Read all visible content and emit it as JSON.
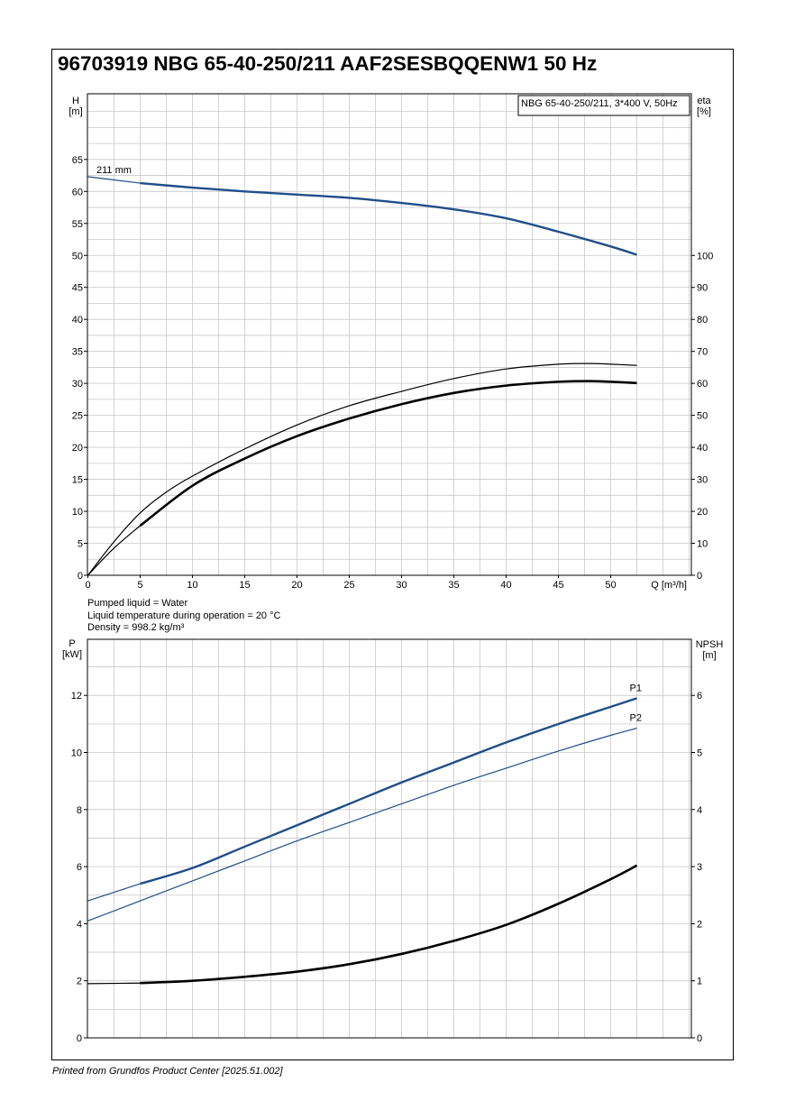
{
  "title": "96703919 NBG 65-40-250/211 AAF2SESBQQENW1 50 Hz",
  "footer": "Printed from Grundfos Product Center [2025.51.002]",
  "liquid_info": [
    "Pumped liquid = Water",
    "Liquid temperature during operation = 20 °C",
    "Density = 998.2 kg/m³"
  ],
  "colors": {
    "blue": "#1f4e89",
    "black": "#000000",
    "grid": "#c8c8c8"
  },
  "chart_data": [
    {
      "type": "line",
      "legend_box": "NBG 65-40-250/211, 3*400 V, 50Hz",
      "impeller_label": "211 mm",
      "x_axis": {
        "label": "Q [m³/h]",
        "range": [
          0,
          58
        ],
        "ticks": [
          0,
          5,
          10,
          15,
          20,
          25,
          30,
          35,
          40,
          45,
          50
        ]
      },
      "y_left": {
        "label_top": "H",
        "label_unit": "[m]",
        "range": [
          0,
          75
        ],
        "ticks": [
          0,
          5,
          10,
          15,
          20,
          25,
          30,
          35,
          40,
          45,
          50,
          55,
          60,
          65
        ]
      },
      "y_right": {
        "label_top": "eta",
        "label_unit": "[%]",
        "range": [
          0,
          150
        ],
        "ticks": [
          0,
          10,
          20,
          30,
          40,
          50,
          60,
          70,
          80,
          90,
          100
        ]
      },
      "grid": true,
      "series": [
        {
          "axis": "left",
          "style": "blue-thick",
          "x": [
            5,
            10,
            15,
            20,
            25,
            30,
            35,
            40,
            45,
            50,
            52.5
          ],
          "y": [
            61.3,
            60.6,
            60.0,
            59.5,
            59.0,
            58.2,
            57.2,
            55.8,
            53.7,
            51.4,
            50.1
          ]
        },
        {
          "axis": "left",
          "style": "blue-thin",
          "x": [
            0,
            5
          ],
          "y": [
            62.3,
            61.3
          ]
        },
        {
          "axis": "right",
          "style": "black-thin",
          "x": [
            0,
            2.5,
            5,
            7.5,
            10,
            15,
            20,
            25,
            30,
            35,
            40,
            45,
            48,
            50,
            52.5
          ],
          "y": [
            0,
            10.5,
            19.5,
            26.0,
            31.0,
            39.5,
            47.0,
            53.0,
            57.5,
            61.5,
            64.5,
            66.0,
            66.2,
            66.0,
            65.6
          ]
        },
        {
          "axis": "right",
          "style": "black-thick",
          "x": [
            5,
            10,
            15,
            20,
            25,
            30,
            35,
            40,
            45,
            48,
            50,
            52.5
          ],
          "y": [
            15.5,
            28.0,
            36.5,
            43.5,
            49.0,
            53.5,
            57.0,
            59.3,
            60.5,
            60.7,
            60.5,
            60.1
          ]
        },
        {
          "axis": "right",
          "style": "black-thin",
          "x": [
            0,
            2.5,
            5
          ],
          "y": [
            0,
            8.5,
            15.5
          ]
        }
      ]
    },
    {
      "type": "line",
      "x_axis": {
        "range": [
          0,
          58
        ]
      },
      "y_left": {
        "label_top": "P",
        "label_unit": "[kW]",
        "range": [
          0,
          13.5
        ],
        "ticks": [
          0,
          2,
          4,
          6,
          8,
          10,
          12
        ]
      },
      "y_right": {
        "label_top": "NPSH",
        "label_unit": "[m]",
        "range": [
          0,
          6.75
        ],
        "ticks": [
          0,
          1,
          2,
          3,
          4,
          5,
          6
        ]
      },
      "grid": true,
      "series": [
        {
          "name": "P1",
          "axis": "left",
          "style": "blue-thick",
          "x": [
            5,
            10,
            15,
            20,
            25,
            30,
            35,
            40,
            45,
            50,
            52.5
          ],
          "y": [
            5.4,
            5.95,
            6.7,
            7.45,
            8.2,
            8.95,
            9.65,
            10.35,
            11.0,
            11.6,
            11.9
          ]
        },
        {
          "name": "",
          "axis": "left",
          "style": "blue-thin",
          "x": [
            0,
            5
          ],
          "y": [
            4.8,
            5.4
          ]
        },
        {
          "name": "P2",
          "axis": "left",
          "style": "blue-thin",
          "x": [
            0,
            5,
            10,
            15,
            20,
            25,
            30,
            35,
            40,
            45,
            50,
            52.5
          ],
          "y": [
            4.1,
            4.8,
            5.5,
            6.2,
            6.9,
            7.55,
            8.2,
            8.85,
            9.45,
            10.05,
            10.6,
            10.85
          ]
        },
        {
          "name": "",
          "axis": "right",
          "style": "black-thin",
          "x": [
            0,
            5
          ],
          "y": [
            0.95,
            0.96
          ]
        },
        {
          "name": "",
          "axis": "right",
          "style": "black-thick",
          "x": [
            5,
            10,
            15,
            20,
            25,
            30,
            35,
            40,
            45,
            50,
            52.5
          ],
          "y": [
            0.96,
            1.0,
            1.07,
            1.16,
            1.29,
            1.47,
            1.7,
            1.98,
            2.35,
            2.78,
            3.02
          ]
        }
      ]
    }
  ]
}
